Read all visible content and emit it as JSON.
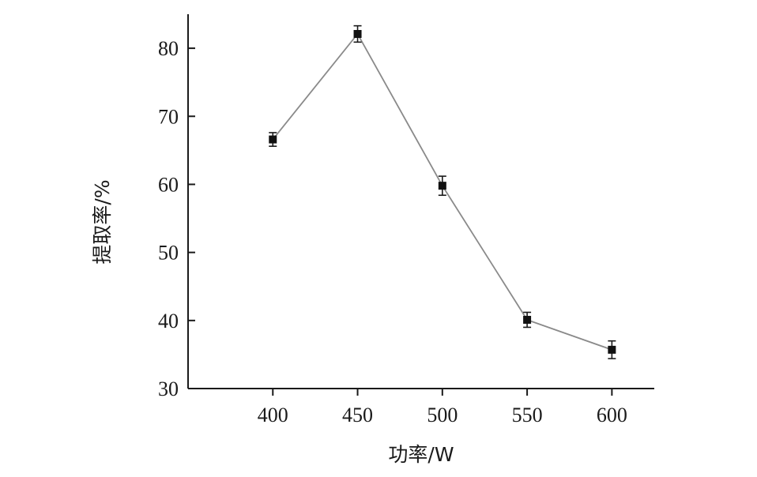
{
  "chart_data": {
    "type": "line",
    "xlabel": "功率/W",
    "ylabel": "提取率/%",
    "x": [
      400,
      450,
      500,
      550,
      600
    ],
    "xlim": [
      350,
      625
    ],
    "xticks": [
      400,
      450,
      500,
      550,
      600
    ],
    "ylim": [
      30,
      85
    ],
    "yticks": [
      30,
      40,
      50,
      60,
      70,
      80
    ],
    "grid": false,
    "series": [
      {
        "values": [
          66.6,
          82.1,
          59.8,
          40.1,
          35.7
        ],
        "errors": [
          1.0,
          1.2,
          1.4,
          1.1,
          1.3
        ],
        "marker": "square",
        "color": "#8a8a8a"
      }
    ]
  }
}
